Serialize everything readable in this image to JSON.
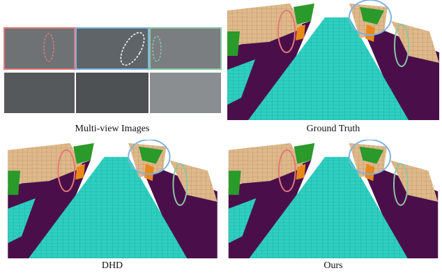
{
  "panels": [
    {
      "caption": "Multi-view Images"
    },
    {
      "caption": "Ground Truth"
    },
    {
      "caption": "DHD"
    },
    {
      "caption": "Ours"
    }
  ]
}
